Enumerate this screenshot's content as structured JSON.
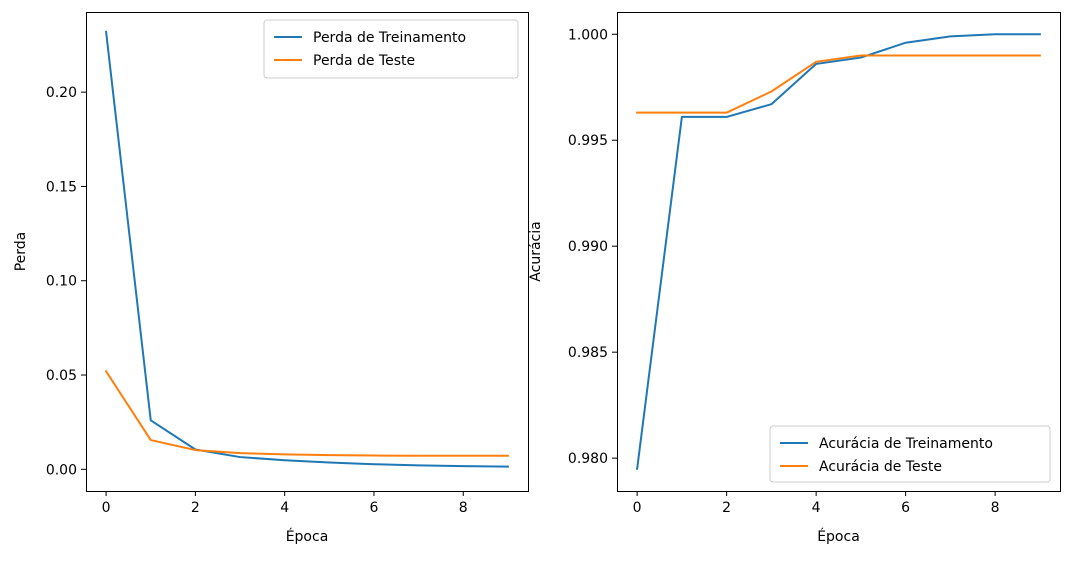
{
  "chart_data": [
    {
      "type": "line",
      "title": "",
      "xlabel": "Época",
      "ylabel": "Perda",
      "xlim": [
        -0.45,
        9.45
      ],
      "ylim": [
        -0.0115,
        0.2425
      ],
      "xticks": [
        0,
        2,
        4,
        6,
        8
      ],
      "xtick_labels": [
        "0",
        "2",
        "4",
        "6",
        "8"
      ],
      "yticks": [
        0.0,
        0.05,
        0.1,
        0.15,
        0.2
      ],
      "ytick_labels": [
        "0.00",
        "0.05",
        "0.10",
        "0.15",
        "0.20"
      ],
      "grid": false,
      "legend_position": "top-right",
      "x": [
        0,
        1,
        2,
        3,
        4,
        5,
        6,
        7,
        8,
        9
      ],
      "series": [
        {
          "name": "Perda de Treinamento",
          "color": "#1f77b4",
          "values": [
            0.232,
            0.026,
            0.0105,
            0.0065,
            0.0048,
            0.0036,
            0.0027,
            0.0021,
            0.0017,
            0.0014
          ]
        },
        {
          "name": "Perda de Teste",
          "color": "#ff7f0e",
          "values": [
            0.052,
            0.0155,
            0.0102,
            0.0086,
            0.0079,
            0.0075,
            0.0073,
            0.0072,
            0.0072,
            0.0072
          ]
        }
      ]
    },
    {
      "type": "line",
      "title": "",
      "xlabel": "Época",
      "ylabel": "Acurácia",
      "xlim": [
        -0.45,
        9.45
      ],
      "ylim": [
        0.97845,
        1.00105
      ],
      "xticks": [
        0,
        2,
        4,
        6,
        8
      ],
      "xtick_labels": [
        "0",
        "2",
        "4",
        "6",
        "8"
      ],
      "yticks": [
        0.98,
        0.985,
        0.99,
        0.995,
        1.0
      ],
      "ytick_labels": [
        "0.980",
        "0.985",
        "0.990",
        "0.995",
        "1.000"
      ],
      "grid": false,
      "legend_position": "bottom-right",
      "x": [
        0,
        1,
        2,
        3,
        4,
        5,
        6,
        7,
        8,
        9
      ],
      "series": [
        {
          "name": "Acurácia de Treinamento",
          "color": "#1f77b4",
          "values": [
            0.9795,
            0.9961,
            0.9961,
            0.9967,
            0.9986,
            0.9989,
            0.9996,
            0.9999,
            1.0,
            1.0
          ]
        },
        {
          "name": "Acurácia de Teste",
          "color": "#ff7f0e",
          "values": [
            0.9963,
            0.9963,
            0.9963,
            0.9973,
            0.9987,
            0.999,
            0.999,
            0.999,
            0.999,
            0.999
          ]
        }
      ]
    }
  ]
}
